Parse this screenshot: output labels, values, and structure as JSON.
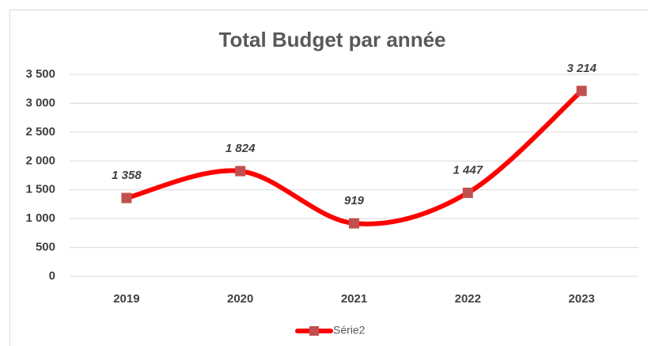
{
  "chart_data": {
    "type": "line",
    "title": "Total Budget par année",
    "categories": [
      "2019",
      "2020",
      "2021",
      "2022",
      "2023"
    ],
    "series": [
      {
        "name": "Série2",
        "color": "#ff0000",
        "marker_color": "#c0504d",
        "values": [
          1358,
          1824,
          919,
          1447,
          3214
        ],
        "value_labels": [
          "1 358",
          "1 824",
          "919",
          "1 447",
          "3 214"
        ]
      }
    ],
    "ylim": [
      0,
      3500
    ],
    "yticks": [
      0,
      500,
      {
        "value": 1000,
        "label": "1 000"
      },
      {
        "value": 1500,
        "label": "1 500"
      },
      {
        "value": 2000,
        "label": "2 000"
      },
      {
        "value": 2500,
        "label": "2 500"
      },
      {
        "value": 3000,
        "label": "3 000"
      },
      {
        "value": 3500,
        "label": "3 500"
      }
    ],
    "grid": true,
    "smooth": true,
    "legend": "bottom"
  }
}
